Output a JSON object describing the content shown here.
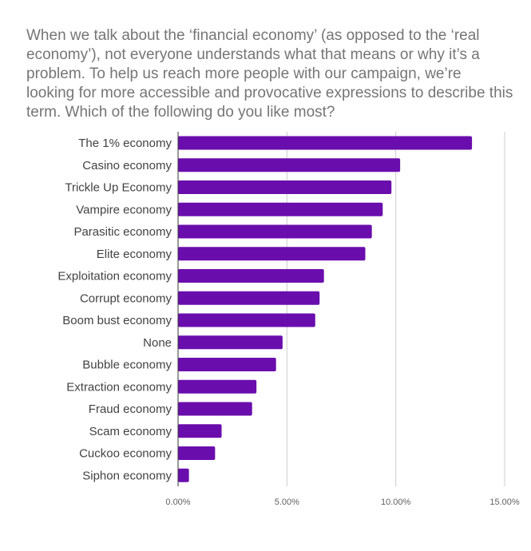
{
  "chart_data": {
    "type": "bar",
    "orientation": "horizontal",
    "title": "When we talk about the ‘financial economy’ (as opposed to the ‘real economy’), not everyone understands what that means or why it’s a problem. To help us reach more people with our campaign, we’re looking for more accessible and provocative expressions to describe this term. Which of the following do you like most?",
    "categories": [
      "The 1% economy",
      "Casino economy",
      "Trickle Up Economy",
      "Vampire economy",
      "Parasitic economy",
      "Elite economy",
      "Exploitation economy",
      "Corrupt economy",
      "Boom bust economy",
      "None",
      "Bubble economy",
      "Extraction economy",
      "Fraud economy",
      "Scam economy",
      "Cuckoo economy",
      "Siphon economy"
    ],
    "values": [
      13.5,
      10.2,
      9.8,
      9.4,
      8.9,
      8.6,
      6.7,
      6.5,
      6.3,
      4.8,
      4.5,
      3.6,
      3.4,
      2.0,
      1.7,
      0.5
    ],
    "xlim": [
      0,
      15
    ],
    "ticks": [
      0,
      5,
      10,
      15
    ],
    "tick_labels": [
      "0.00%",
      "5.00%",
      "10.00%",
      "15.00%"
    ],
    "xlabel": "",
    "ylabel": "",
    "grid": true,
    "legend": "none",
    "bar_color": "#6a0dad",
    "grid_color": "#cccccc",
    "axis_color": "#333333"
  }
}
